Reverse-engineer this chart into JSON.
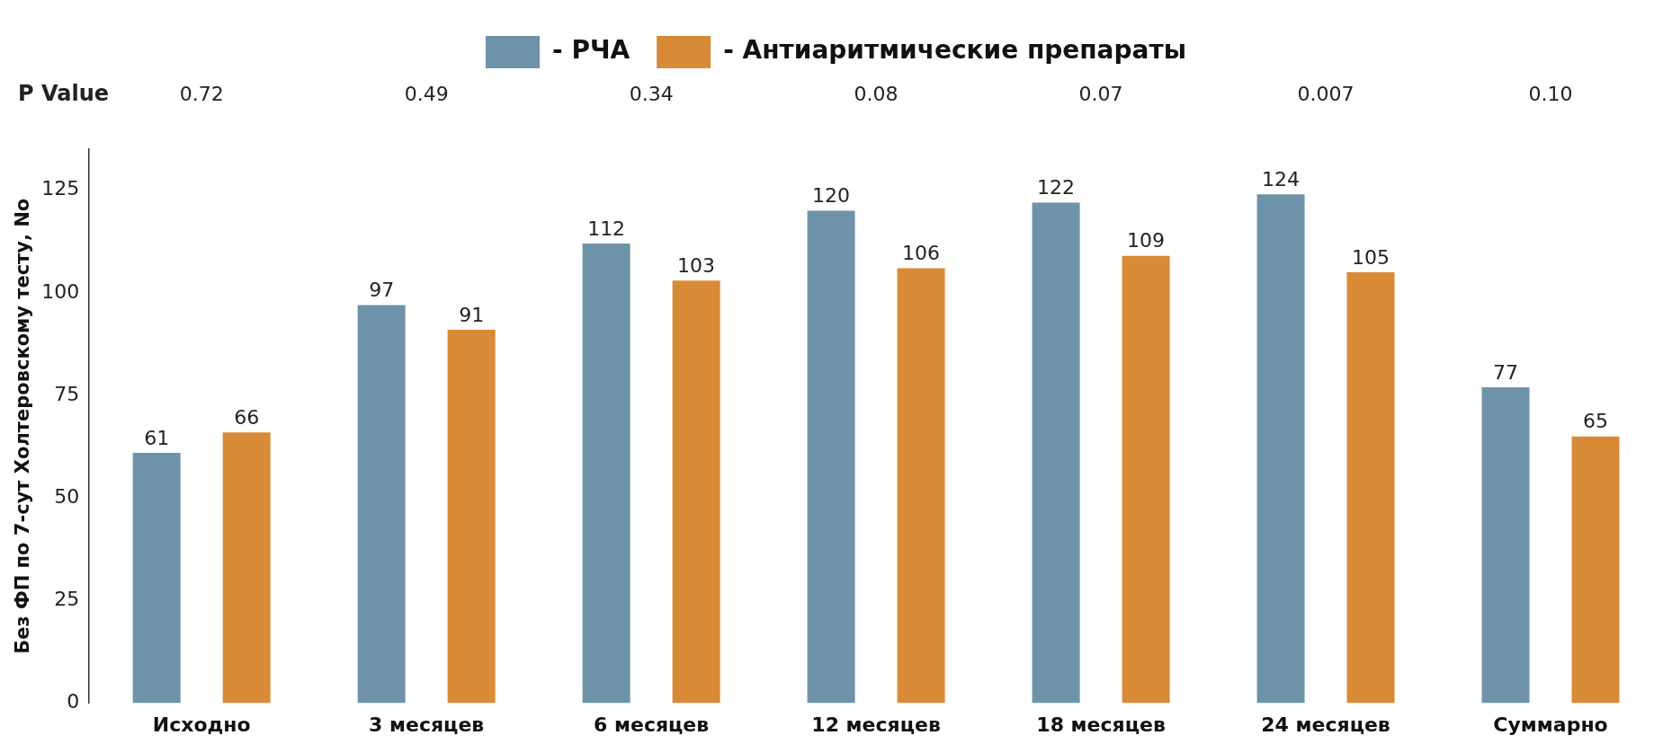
{
  "chart_data": {
    "type": "bar",
    "ylabel": "Без ФП по 7-сут Холтеровскому тесту, No",
    "categories": [
      "Исходно",
      "3 месяцев",
      "6 месяцев",
      "12 месяцев",
      "18 месяцев",
      "24 месяцев",
      "Суммарно"
    ],
    "series": [
      {
        "name": "- РЧА",
        "color": "#6e93a8",
        "values": [
          61,
          97,
          112,
          120,
          122,
          124,
          77
        ]
      },
      {
        "name": "- Антиаритмические препараты",
        "color": "#d98a36",
        "values": [
          66,
          91,
          103,
          106,
          109,
          105,
          65
        ]
      }
    ],
    "annotations": [
      "P Value",
      "0.72",
      "0.49",
      "0.34",
      "0.08",
      "0.07",
      "0.007",
      "0.10"
    ],
    "ylim": [
      0,
      135
    ],
    "yticks": [
      0,
      25,
      50,
      75,
      100,
      125
    ],
    "grid": false,
    "legend": "top",
    "data_labels": true
  }
}
